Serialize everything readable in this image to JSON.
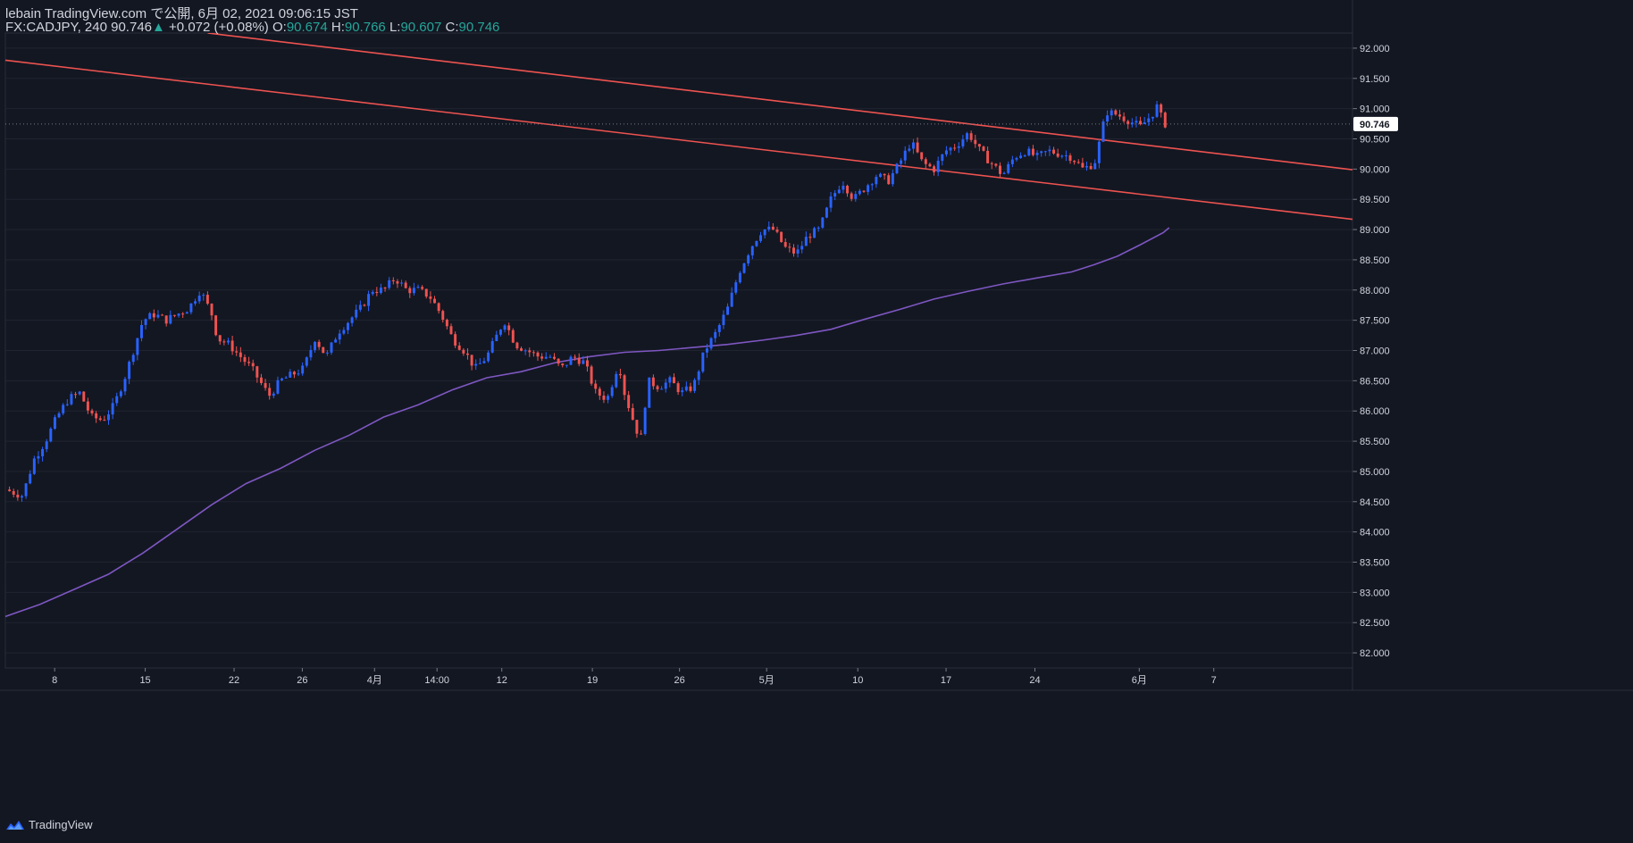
{
  "header": {
    "publisher_line": "lebain TradingView.com で公開, 6月 02, 2021 09:06:15 JST",
    "symbol": "FX:CADJPY, 240",
    "last": "90.746",
    "up_icon": "triangle-up-icon",
    "change": "+0.072 (+0.08%)",
    "o_label": "O:",
    "o_value": "90.674",
    "h_label": "H:",
    "h_value": "90.766",
    "l_label": "L:",
    "l_value": "90.607",
    "c_label": "C:",
    "c_value": "90.746"
  },
  "footer": {
    "brand": "TradingView",
    "icon": "tradingview-logo-icon"
  },
  "colors": {
    "background": "#131722",
    "up": "#2962ff",
    "down": "#ef5350",
    "trendline": "#ef5350",
    "moving_average": "#7e57c2",
    "grid": "#1f2430",
    "axis_text": "#d1d4dc",
    "last_price_bg": "#ffffff"
  },
  "chart_data": {
    "type": "candlestick",
    "symbol": "FX:CADJPY",
    "interval": "240",
    "x_domain": [
      0,
      235
    ],
    "ylim": [
      81.75,
      92.25
    ],
    "y_ticks": [
      "82.000",
      "82.500",
      "83.000",
      "83.500",
      "84.000",
      "84.500",
      "85.000",
      "85.500",
      "86.000",
      "86.500",
      "87.000",
      "87.500",
      "88.000",
      "88.500",
      "89.000",
      "89.500",
      "90.000",
      "90.500",
      "91.000",
      "91.500",
      "92.000"
    ],
    "x_ticks": [
      {
        "label": "8",
        "x": 8.6
      },
      {
        "label": "15",
        "x": 24.4
      },
      {
        "label": "22",
        "x": 39.9
      },
      {
        "label": "26",
        "x": 51.8
      },
      {
        "label": "4月",
        "x": 64.4
      },
      {
        "label": "14:00",
        "x": 75.3
      },
      {
        "label": "12",
        "x": 86.6
      },
      {
        "label": "19",
        "x": 102.4
      },
      {
        "label": "26",
        "x": 117.6
      },
      {
        "label": "5月",
        "x": 132.8
      },
      {
        "label": "10",
        "x": 148.7
      },
      {
        "label": "17",
        "x": 164.1
      },
      {
        "label": "24",
        "x": 179.6
      },
      {
        "label": "6月",
        "x": 197.8
      },
      {
        "label": "7",
        "x": 210.8
      }
    ],
    "last_price": "90.746",
    "close_path": [
      [
        0,
        84.7
      ],
      [
        3,
        84.6
      ],
      [
        5,
        85.2
      ],
      [
        7,
        85.5
      ],
      [
        9,
        85.9
      ],
      [
        11,
        86.2
      ],
      [
        13,
        86.3
      ],
      [
        15,
        85.9
      ],
      [
        17,
        85.85
      ],
      [
        19,
        86.1
      ],
      [
        21,
        86.6
      ],
      [
        23,
        87.2
      ],
      [
        24,
        87.5
      ],
      [
        26,
        87.6
      ],
      [
        28,
        87.5
      ],
      [
        30,
        87.6
      ],
      [
        32,
        87.7
      ],
      [
        34,
        88.0
      ],
      [
        36,
        87.6
      ],
      [
        37,
        87.2
      ],
      [
        39,
        87.1
      ],
      [
        41,
        86.9
      ],
      [
        43,
        86.7
      ],
      [
        45,
        86.4
      ],
      [
        46,
        86.25
      ],
      [
        48,
        86.5
      ],
      [
        50,
        86.6
      ],
      [
        52,
        86.7
      ],
      [
        54,
        87.2
      ],
      [
        56,
        86.9
      ],
      [
        58,
        87.3
      ],
      [
        60,
        87.5
      ],
      [
        62,
        87.7
      ],
      [
        64,
        88.0
      ],
      [
        66,
        88.0
      ],
      [
        68,
        88.2
      ],
      [
        70,
        88.0
      ],
      [
        72,
        88.0
      ],
      [
        74,
        87.9
      ],
      [
        76,
        87.6
      ],
      [
        78,
        87.2
      ],
      [
        80,
        87.0
      ],
      [
        82,
        86.7
      ],
      [
        84,
        86.9
      ],
      [
        86,
        87.3
      ],
      [
        87,
        87.5
      ],
      [
        89,
        87.1
      ],
      [
        91,
        87.0
      ],
      [
        93,
        86.9
      ],
      [
        95,
        86.9
      ],
      [
        97,
        86.7
      ],
      [
        99,
        86.9
      ],
      [
        101,
        86.8
      ],
      [
        103,
        86.3
      ],
      [
        105,
        86.2
      ],
      [
        107,
        86.8
      ],
      [
        108,
        86.3
      ],
      [
        110,
        85.7
      ],
      [
        111,
        85.55
      ],
      [
        112,
        86.5
      ],
      [
        114,
        86.4
      ],
      [
        116,
        86.5
      ],
      [
        118,
        86.3
      ],
      [
        120,
        86.4
      ],
      [
        122,
        87.0
      ],
      [
        124,
        87.3
      ],
      [
        126,
        87.7
      ],
      [
        128,
        88.3
      ],
      [
        130,
        88.7
      ],
      [
        132,
        89.0
      ],
      [
        134,
        89.0
      ],
      [
        136,
        88.7
      ],
      [
        138,
        88.6
      ],
      [
        140,
        88.9
      ],
      [
        142,
        89.0
      ],
      [
        144,
        89.5
      ],
      [
        146,
        89.8
      ],
      [
        148,
        89.5
      ],
      [
        150,
        89.7
      ],
      [
        152,
        89.9
      ],
      [
        154,
        89.8
      ],
      [
        156,
        90.1
      ],
      [
        158,
        90.45
      ],
      [
        160,
        90.1
      ],
      [
        162,
        90.0
      ],
      [
        164,
        90.3
      ],
      [
        166,
        90.4
      ],
      [
        168,
        90.6
      ],
      [
        170,
        90.3
      ],
      [
        172,
        90.1
      ],
      [
        174,
        89.9
      ],
      [
        176,
        90.2
      ],
      [
        178,
        90.3
      ],
      [
        180,
        90.2
      ],
      [
        182,
        90.3
      ],
      [
        184,
        90.25
      ],
      [
        186,
        90.2
      ],
      [
        188,
        90.0
      ],
      [
        190,
        90.1
      ],
      [
        191,
        90.5
      ],
      [
        192,
        90.95
      ],
      [
        194,
        90.9
      ],
      [
        196,
        90.8
      ],
      [
        198,
        90.7
      ],
      [
        200,
        90.9
      ],
      [
        201,
        91.05
      ],
      [
        202,
        90.75
      ],
      [
        203,
        90.746
      ]
    ],
    "series": [
      {
        "name": "Moving average",
        "color": "#7e57c2",
        "points": [
          [
            0,
            82.6
          ],
          [
            6,
            82.8
          ],
          [
            12,
            83.05
          ],
          [
            18,
            83.3
          ],
          [
            24,
            83.65
          ],
          [
            30,
            84.05
          ],
          [
            36,
            84.45
          ],
          [
            42,
            84.8
          ],
          [
            48,
            85.05
          ],
          [
            54,
            85.35
          ],
          [
            60,
            85.6
          ],
          [
            66,
            85.9
          ],
          [
            72,
            86.1
          ],
          [
            78,
            86.35
          ],
          [
            84,
            86.55
          ],
          [
            90,
            86.65
          ],
          [
            96,
            86.8
          ],
          [
            102,
            86.9
          ],
          [
            108,
            86.97
          ],
          [
            114,
            87.0
          ],
          [
            120,
            87.05
          ],
          [
            126,
            87.1
          ],
          [
            132,
            87.17
          ],
          [
            138,
            87.25
          ],
          [
            144,
            87.35
          ],
          [
            150,
            87.52
          ],
          [
            156,
            87.68
          ],
          [
            162,
            87.85
          ],
          [
            168,
            87.98
          ],
          [
            174,
            88.1
          ],
          [
            180,
            88.2
          ],
          [
            186,
            88.3
          ],
          [
            190,
            88.42
          ],
          [
            194,
            88.56
          ],
          [
            198,
            88.75
          ],
          [
            202,
            88.95
          ],
          [
            203,
            89.03
          ]
        ]
      }
    ],
    "trendlines": [
      {
        "name": "upper channel line",
        "color": "#ef5350",
        "from": [
          35.3,
          92.25
        ],
        "to": [
          235,
          89.99
        ]
      },
      {
        "name": "lower channel line",
        "color": "#ef5350",
        "from": [
          0,
          91.8
        ],
        "to": [
          235,
          89.17
        ]
      }
    ]
  }
}
